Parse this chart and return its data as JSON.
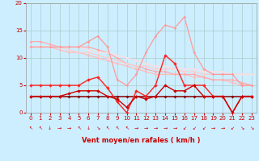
{
  "title": "",
  "xlabel": "Vent moyen/en rafales ( km/h )",
  "bg_color": "#cceeff",
  "grid_color": "#aacccc",
  "xlim": [
    -0.5,
    23.5
  ],
  "ylim": [
    0,
    20
  ],
  "yticks": [
    0,
    5,
    10,
    15,
    20
  ],
  "xticks": [
    0,
    1,
    2,
    3,
    4,
    5,
    6,
    7,
    8,
    9,
    10,
    11,
    12,
    13,
    14,
    15,
    16,
    17,
    18,
    19,
    20,
    21,
    22,
    23
  ],
  "series": [
    {
      "comment": "light pink - slow diagonal line from ~12 down to ~5",
      "x": [
        0,
        1,
        2,
        3,
        4,
        5,
        6,
        7,
        8,
        9,
        10,
        11,
        12,
        13,
        14,
        15,
        16,
        17,
        18,
        19,
        20,
        21,
        22,
        23
      ],
      "y": [
        12,
        12,
        12,
        11.5,
        11,
        11,
        10.5,
        10,
        9.5,
        9,
        8.5,
        8,
        7.5,
        7,
        7,
        7,
        7,
        6.5,
        6.5,
        6,
        6,
        5.5,
        5,
        5
      ],
      "color": "#ffbbbb",
      "linewidth": 0.9,
      "marker": "D",
      "markersize": 1.8
    },
    {
      "comment": "medium pink - slow diagonal from ~13 down to ~5",
      "x": [
        0,
        1,
        2,
        3,
        4,
        5,
        6,
        7,
        8,
        9,
        10,
        11,
        12,
        13,
        14,
        15,
        16,
        17,
        18,
        19,
        20,
        21,
        22,
        23
      ],
      "y": [
        13,
        13,
        12.5,
        12,
        12,
        12,
        12,
        11.5,
        11,
        10,
        9,
        8.5,
        8,
        7.5,
        7.5,
        7,
        7,
        7,
        6.5,
        6,
        6,
        6,
        5.5,
        5
      ],
      "color": "#ffaaaa",
      "linewidth": 0.9,
      "marker": "D",
      "markersize": 1.8
    },
    {
      "comment": "light pink 2 - slow diagonal, nearly straight from ~13 to ~8",
      "x": [
        0,
        1,
        2,
        3,
        4,
        5,
        6,
        7,
        8,
        9,
        10,
        11,
        12,
        13,
        14,
        15,
        16,
        17,
        18,
        19,
        20,
        21,
        22,
        23
      ],
      "y": [
        12,
        12,
        12,
        12,
        11.5,
        11,
        11,
        10.5,
        10,
        9.5,
        9,
        8.5,
        8.5,
        8,
        8,
        8,
        7.5,
        7.5,
        7,
        7,
        7,
        7,
        7,
        7
      ],
      "color": "#ffcccc",
      "linewidth": 0.9,
      "marker": "D",
      "markersize": 1.8
    },
    {
      "comment": "palest pink - nearly flat ~12 slowly down to ~8",
      "x": [
        0,
        1,
        2,
        3,
        4,
        5,
        6,
        7,
        8,
        9,
        10,
        11,
        12,
        13,
        14,
        15,
        16,
        17,
        18,
        19,
        20,
        21,
        22,
        23
      ],
      "y": [
        12,
        12,
        12,
        12,
        12,
        12,
        11.5,
        11,
        11,
        10.5,
        10,
        9.5,
        9,
        8.5,
        8.5,
        8,
        8,
        8,
        7.5,
        7.5,
        7.5,
        7,
        7,
        7
      ],
      "color": "#ffdddd",
      "linewidth": 0.9,
      "marker": "D",
      "markersize": 1.8
    },
    {
      "comment": "lightest pink - with spike, goes 13->14->12->drop->up to 17->down to 5",
      "x": [
        0,
        1,
        2,
        3,
        4,
        5,
        6,
        7,
        8,
        9,
        10,
        11,
        12,
        13,
        14,
        15,
        16,
        17,
        18,
        19,
        20,
        21,
        22,
        23
      ],
      "y": [
        12,
        12,
        12,
        12,
        12,
        12,
        13,
        14,
        12,
        6,
        5,
        7,
        11,
        14,
        16,
        15.5,
        17.5,
        11,
        8,
        7,
        7,
        7,
        5,
        5
      ],
      "color": "#ff9999",
      "linewidth": 0.9,
      "marker": "D",
      "markersize": 1.8
    },
    {
      "comment": "dark red flat ~3",
      "x": [
        0,
        1,
        2,
        3,
        4,
        5,
        6,
        7,
        8,
        9,
        10,
        11,
        12,
        13,
        14,
        15,
        16,
        17,
        18,
        19,
        20,
        21,
        22,
        23
      ],
      "y": [
        3,
        3,
        3,
        3,
        3,
        3,
        3,
        3,
        3,
        3,
        3,
        3,
        3,
        3,
        3,
        3,
        3,
        3,
        3,
        3,
        3,
        3,
        3,
        3
      ],
      "color": "#880000",
      "linewidth": 1.1,
      "marker": "D",
      "markersize": 2
    },
    {
      "comment": "medium red - spiky line hovering ~5, big spike at 14-15",
      "x": [
        0,
        1,
        2,
        3,
        4,
        5,
        6,
        7,
        8,
        9,
        10,
        11,
        12,
        13,
        14,
        15,
        16,
        17,
        18,
        19,
        20,
        21,
        22,
        23
      ],
      "y": [
        5,
        5,
        5,
        5,
        5,
        5,
        6,
        6.5,
        4.5,
        2,
        0,
        4,
        3,
        5,
        10.5,
        9,
        5,
        5,
        5,
        3,
        3,
        0,
        3,
        3
      ],
      "color": "#ff2222",
      "linewidth": 1.0,
      "marker": "D",
      "markersize": 2.2
    },
    {
      "comment": "bright red - varying ~3-5, dips at 10 and 21, triangle shape at end",
      "x": [
        0,
        1,
        2,
        3,
        4,
        5,
        6,
        7,
        8,
        9,
        10,
        11,
        12,
        13,
        14,
        15,
        16,
        17,
        18,
        19,
        20,
        21,
        22,
        23
      ],
      "y": [
        3,
        3,
        3,
        3,
        3.5,
        4,
        4,
        4,
        3,
        2.5,
        1,
        3,
        2.5,
        3,
        5,
        4,
        4,
        5,
        3,
        3,
        3,
        0,
        3,
        3
      ],
      "color": "#cc0000",
      "linewidth": 1.0,
      "marker": "D",
      "markersize": 2.2
    }
  ],
  "wind_dirs": [
    "SW",
    "SW",
    "N",
    "ENE",
    "ENE",
    "SW",
    "N",
    "NW",
    "SW",
    "SW",
    "SW",
    "E",
    "E",
    "E",
    "ENE",
    "ENE",
    "NE",
    "NE",
    "NE",
    "E",
    "E",
    "NE",
    "NW",
    "NW"
  ]
}
